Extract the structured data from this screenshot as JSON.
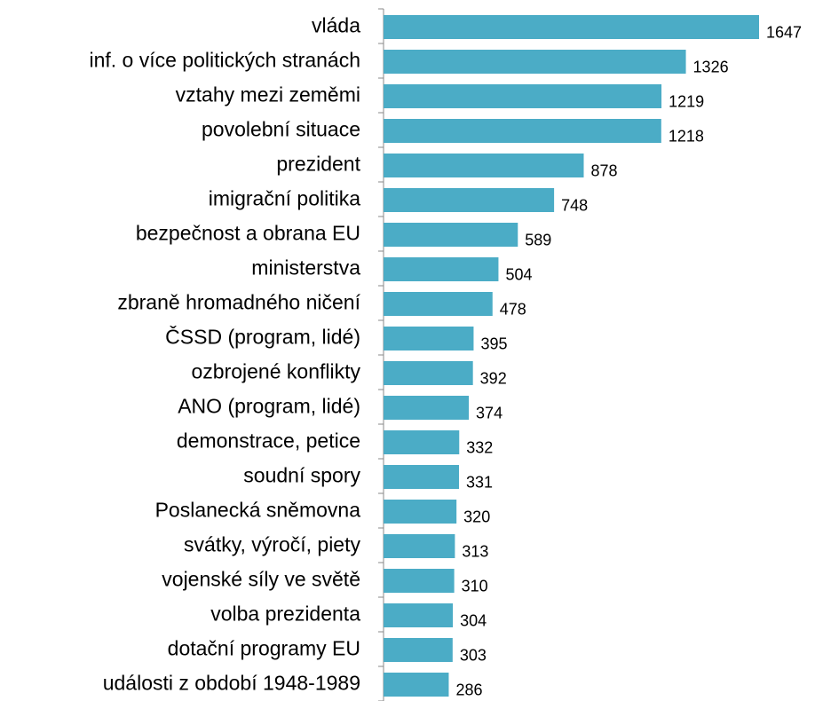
{
  "chart_data": {
    "type": "bar",
    "orientation": "horizontal",
    "categories": [
      "vláda",
      "inf. o více politických stranách",
      "vztahy mezi zeměmi",
      "povolební situace",
      "prezident",
      "imigrační politika",
      "bezpečnost a obrana EU",
      "ministerstva",
      "zbraně hromadného ničení",
      "ČSSD (program, lidé)",
      "ozbrojené konflikty",
      "ANO (program, lidé)",
      "demonstrace, petice",
      "soudní spory",
      "Poslanecká sněmovna",
      "svátky, výročí, piety",
      "vojenské síly ve světě",
      "volba prezidenta",
      "dotační programy EU",
      "události z období 1948-1989"
    ],
    "values": [
      1647,
      1326,
      1219,
      1218,
      878,
      748,
      589,
      504,
      478,
      395,
      392,
      374,
      332,
      331,
      320,
      313,
      310,
      304,
      303,
      286
    ],
    "color": "#4bacc6"
  }
}
